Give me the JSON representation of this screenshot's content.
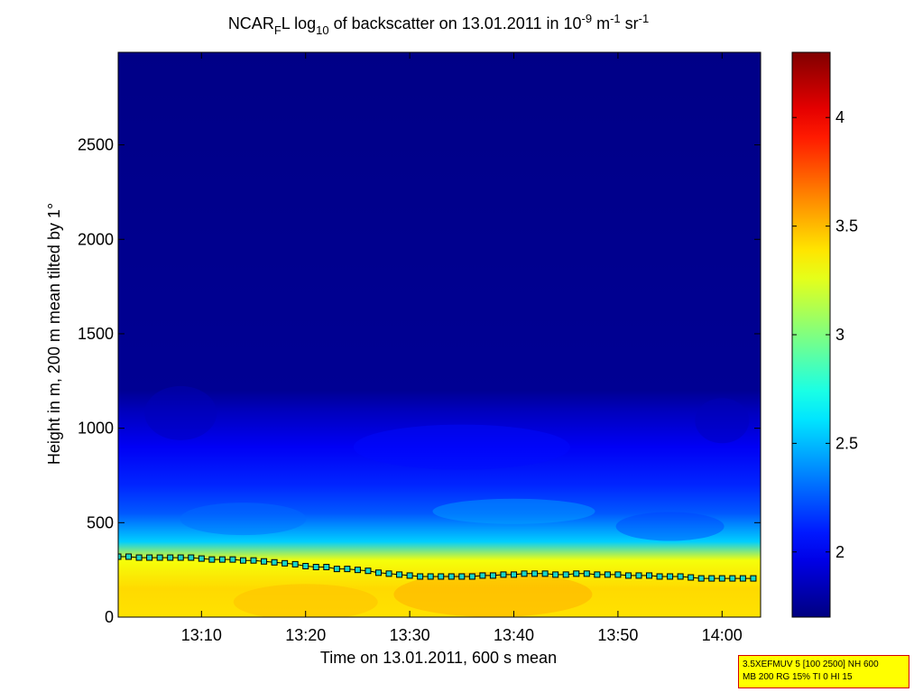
{
  "title": {
    "prefix": "NCAR",
    "sub1": "F",
    "mid": "L log",
    "sub2": "10",
    "mid2": " of backscatter on 13.01.2011 in 10",
    "sup1": "-9",
    "mid3": " m",
    "sup2": "-1",
    "mid4": " sr",
    "sup3": "-1"
  },
  "info_box": {
    "line1": "3.5XEFMUV 5 [100 2500] NH 600",
    "line2": "MB 200 RG 15% TI 0 HI 15"
  },
  "chart_data": {
    "type": "heatmap",
    "xlabel": "Time on 13.01.2011, 600 s mean",
    "ylabel": "Height in m, 200 m mean tilted by 1°",
    "x_range_minutes": [
      2.0,
      63.7
    ],
    "x_ticks": [
      {
        "value": 10,
        "label": "13:10"
      },
      {
        "value": 20,
        "label": "13:20"
      },
      {
        "value": 30,
        "label": "13:30"
      },
      {
        "value": 40,
        "label": "13:40"
      },
      {
        "value": 50,
        "label": "13:50"
      },
      {
        "value": 60,
        "label": "14:00"
      }
    ],
    "ylim": [
      0,
      2990
    ],
    "y_ticks": [
      0,
      500,
      1000,
      1500,
      2000,
      2500
    ],
    "colorbar": {
      "clim": [
        1.7,
        4.3
      ],
      "ticks": [
        2,
        2.5,
        3,
        3.5,
        4
      ],
      "colormap": "jet"
    },
    "profile_levels": [
      {
        "height": 0,
        "value": 3.4
      },
      {
        "height": 150,
        "value": 3.42
      },
      {
        "height": 300,
        "value": 3.3
      },
      {
        "height": 400,
        "value": 2.55
      },
      {
        "height": 550,
        "value": 2.25
      },
      {
        "height": 700,
        "value": 2.12
      },
      {
        "height": 900,
        "value": 2.0
      },
      {
        "height": 1100,
        "value": 1.85
      },
      {
        "height": 1200,
        "value": 1.75
      },
      {
        "height": 2990,
        "value": 1.72
      }
    ],
    "boundary_layer_series": {
      "name": "",
      "marker": "square",
      "x": [
        2,
        3,
        4,
        5,
        6,
        7,
        8,
        9,
        10,
        11,
        12,
        13,
        14,
        15,
        16,
        17,
        18,
        19,
        20,
        21,
        22,
        23,
        24,
        25,
        26,
        27,
        28,
        29,
        30,
        31,
        32,
        33,
        34,
        35,
        36,
        37,
        38,
        39,
        40,
        41,
        42,
        43,
        44,
        45,
        46,
        47,
        48,
        49,
        50,
        51,
        52,
        53,
        54,
        55,
        56,
        57,
        58,
        59,
        60,
        61,
        62,
        63
      ],
      "y": [
        320,
        320,
        315,
        315,
        315,
        315,
        315,
        315,
        310,
        305,
        305,
        305,
        300,
        300,
        295,
        290,
        285,
        280,
        270,
        265,
        265,
        255,
        255,
        250,
        245,
        235,
        230,
        225,
        220,
        215,
        215,
        215,
        215,
        215,
        215,
        220,
        220,
        225,
        225,
        230,
        230,
        230,
        225,
        225,
        230,
        230,
        225,
        225,
        225,
        220,
        220,
        220,
        215,
        215,
        215,
        210,
        205,
        205,
        205,
        205,
        205,
        205
      ]
    }
  }
}
